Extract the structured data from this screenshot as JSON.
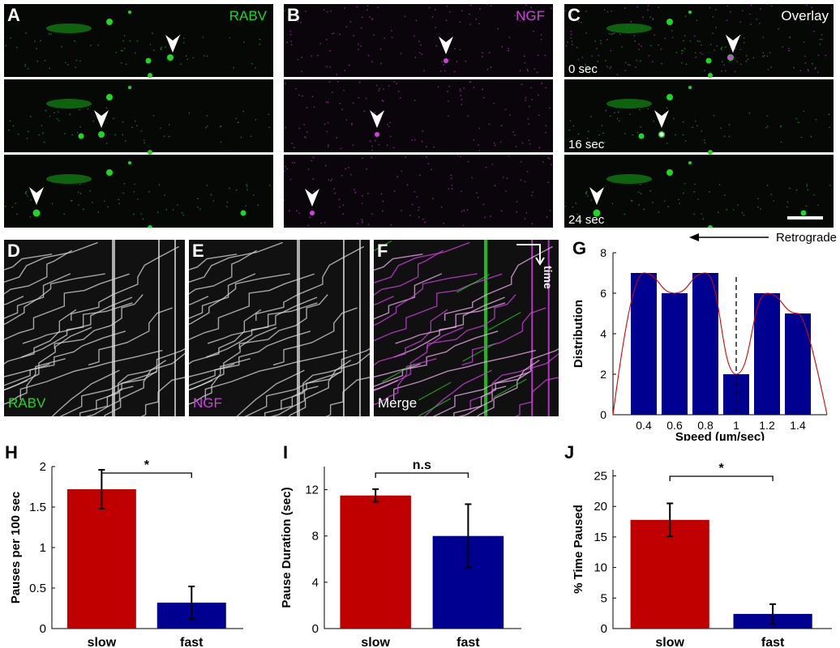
{
  "micrographs": {
    "A": {
      "letter": "A",
      "label": "RABV"
    },
    "B": {
      "letter": "B",
      "label": "NGF"
    },
    "C": {
      "letter": "C",
      "label": "Overlay",
      "times": [
        "0 sec",
        "16 sec",
        "24 sec"
      ]
    }
  },
  "kymographs": {
    "D": {
      "letter": "D",
      "label": "RABV"
    },
    "E": {
      "letter": "E",
      "label": "NGF"
    },
    "F": {
      "letter": "F",
      "label": "Merge",
      "time_label": "time"
    }
  },
  "colors": {
    "green": "#1fd81f",
    "magenta": "#d040e0",
    "red": "#c00000",
    "blue": "#000090"
  },
  "chart_data": [
    {
      "panel": "G",
      "letter": "G",
      "type": "bar",
      "categories": [
        "0.4",
        "0.6",
        "0.8",
        "1",
        "1.2",
        "1.4"
      ],
      "values": [
        7,
        6,
        7,
        2,
        6,
        5
      ],
      "xlabel": "Speed (µm/sec)",
      "ylabel": "Distribution",
      "ylim": [
        0,
        8
      ],
      "yticks": [
        "0",
        "2",
        "4",
        "6",
        "8"
      ],
      "annotation": "Retrograde",
      "dashed_line_at": "1",
      "fit_curve": true
    },
    {
      "panel": "H",
      "letter": "H",
      "type": "bar",
      "categories": [
        "slow",
        "fast"
      ],
      "values": [
        1.72,
        0.32
      ],
      "errors": [
        0.24,
        0.2
      ],
      "ylabel": "Pauses per 100 sec",
      "ylim": [
        0,
        2
      ],
      "yticks": [
        "0",
        "0.5",
        "1",
        "1.5",
        "2"
      ],
      "significance": "*"
    },
    {
      "panel": "I",
      "letter": "I",
      "type": "bar",
      "categories": [
        "slow",
        "fast"
      ],
      "values": [
        11.5,
        8.0
      ],
      "errors": [
        0.55,
        2.75
      ],
      "ylabel": "Pause Duration (sec)",
      "ylim": [
        0,
        14
      ],
      "yticks": [
        "0",
        "4",
        "8",
        "12"
      ],
      "significance": "n.s"
    },
    {
      "panel": "J",
      "letter": "J",
      "type": "bar",
      "categories": [
        "slow",
        "fast"
      ],
      "values": [
        17.8,
        2.4
      ],
      "errors": [
        2.7,
        1.6
      ],
      "ylabel": "% Time Paused",
      "ylim": [
        0,
        26
      ],
      "yticks": [
        "0",
        "5",
        "10",
        "15",
        "20",
        "25"
      ],
      "significance": "*"
    }
  ]
}
